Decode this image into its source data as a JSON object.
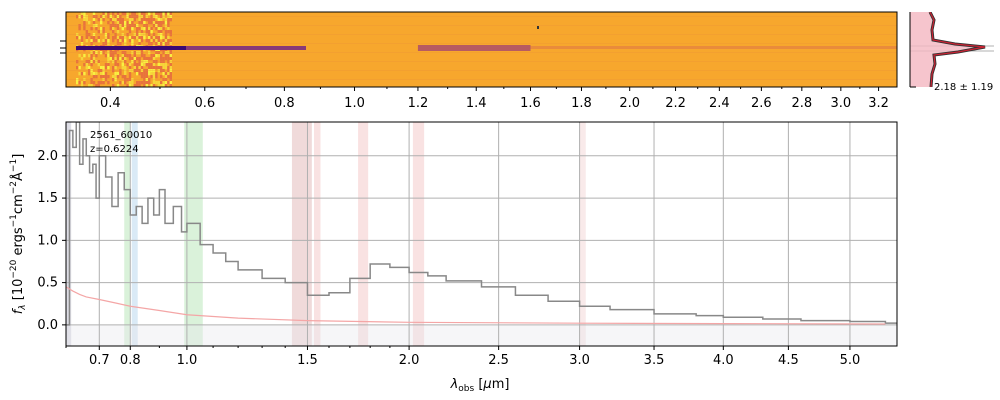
{
  "colors": {
    "spectrum": "#888888",
    "error": "#f4a6a6",
    "model": "#dd3333",
    "spectrum2d_base": "#f7a72d",
    "trace_dark": "#3a0a73",
    "noise_yellow": "#f9f042",
    "grid": "#b0b0b0"
  },
  "spectrum2d": {
    "wave_tick_labels": [
      "0.4",
      "0.6",
      "0.8",
      "1.0",
      "1.2",
      "1.4",
      "1.6",
      "1.8",
      "2.0",
      "2.2",
      "2.4",
      "2.6",
      "2.8",
      "3.0",
      "3.2"
    ]
  },
  "profile_panel": {
    "label": "2.18 ± 1.19"
  },
  "chart_data": {
    "type": "line",
    "title": "",
    "annotation": {
      "id": "2561_60010",
      "redshift": "z=0.6224"
    },
    "xlabel": "λ_obs [μm]",
    "ylabel": "f_λ [10^-20 ergs^-1 cm^-2 Å^-1]",
    "x_scale": "power-law stretched",
    "xlim": [
      0.6,
      5.4
    ],
    "ylim": [
      -0.25,
      2.4
    ],
    "x_ticks": [
      0.7,
      0.8,
      1.0,
      1.5,
      2.0,
      2.5,
      3.0,
      3.5,
      4.0,
      4.5,
      5.0
    ],
    "x_tick_labels": [
      "0.7",
      "0.8",
      "1.0",
      "1.5",
      "2.0",
      "2.5",
      "3.0",
      "3.5",
      "4.0",
      "4.5",
      "5.0"
    ],
    "y_ticks": [
      0.0,
      0.5,
      1.0,
      1.5,
      2.0
    ],
    "y_tick_labels": [
      "0.0",
      "0.5",
      "1.0",
      "1.5",
      "2.0"
    ],
    "grid": true,
    "series": [
      {
        "style": "steps",
        "color": "#888888",
        "x": [
          0.6,
          0.61,
          0.62,
          0.63,
          0.64,
          0.65,
          0.66,
          0.67,
          0.68,
          0.69,
          0.7,
          0.72,
          0.74,
          0.76,
          0.78,
          0.8,
          0.82,
          0.84,
          0.86,
          0.88,
          0.9,
          0.92,
          0.95,
          0.98,
          1.0,
          1.05,
          1.1,
          1.15,
          1.2,
          1.3,
          1.4,
          1.5,
          1.6,
          1.7,
          1.8,
          1.9,
          2.0,
          2.1,
          2.2,
          2.4,
          2.6,
          2.8,
          3.0,
          3.2,
          3.5,
          3.8,
          4.0,
          4.3,
          4.6,
          5.0,
          5.3
        ],
        "y": [
          0.0,
          2.3,
          2.1,
          2.4,
          1.9,
          2.2,
          2.0,
          1.8,
          1.9,
          1.5,
          2.0,
          1.75,
          1.4,
          1.8,
          1.6,
          1.3,
          1.4,
          1.2,
          1.5,
          1.3,
          1.6,
          1.2,
          1.4,
          1.1,
          1.2,
          0.95,
          0.85,
          0.75,
          0.65,
          0.55,
          0.5,
          0.35,
          0.38,
          0.55,
          0.72,
          0.68,
          0.62,
          0.58,
          0.52,
          0.45,
          0.35,
          0.28,
          0.22,
          0.18,
          0.13,
          0.11,
          0.09,
          0.07,
          0.05,
          0.04,
          0.02
        ]
      },
      {
        "style": "line",
        "color": "#f4a6a6",
        "x": [
          0.6,
          0.62,
          0.64,
          0.66,
          0.7,
          0.75,
          0.8,
          0.9,
          1.0,
          1.2,
          1.5,
          2.0,
          3.0,
          4.0,
          5.3
        ],
        "y": [
          0.45,
          0.4,
          0.36,
          0.33,
          0.3,
          0.26,
          0.22,
          0.17,
          0.12,
          0.08,
          0.05,
          0.03,
          0.02,
          0.015,
          0.01
        ]
      }
    ],
    "shaded_bands": [
      {
        "x0": 0.6,
        "x1": 0.615,
        "color": "#bbbbcc"
      },
      {
        "x0": 0.78,
        "x1": 0.8,
        "color": "#b5e6b5"
      },
      {
        "x0": 0.805,
        "x1": 0.825,
        "color": "#b5d5ee"
      },
      {
        "x0": 0.99,
        "x1": 1.06,
        "color": "#b5e6b5"
      },
      {
        "x0": 1.43,
        "x1": 1.52,
        "color": "#e2b5b5"
      },
      {
        "x0": 1.53,
        "x1": 1.56,
        "color": "#f4c5c5"
      },
      {
        "x0": 1.74,
        "x1": 1.79,
        "color": "#f4c5c5"
      },
      {
        "x0": 2.02,
        "x1": 2.08,
        "color": "#f4c5c5"
      },
      {
        "x0": 3.0,
        "x1": 3.04,
        "color": "#f4d5d5"
      }
    ]
  }
}
